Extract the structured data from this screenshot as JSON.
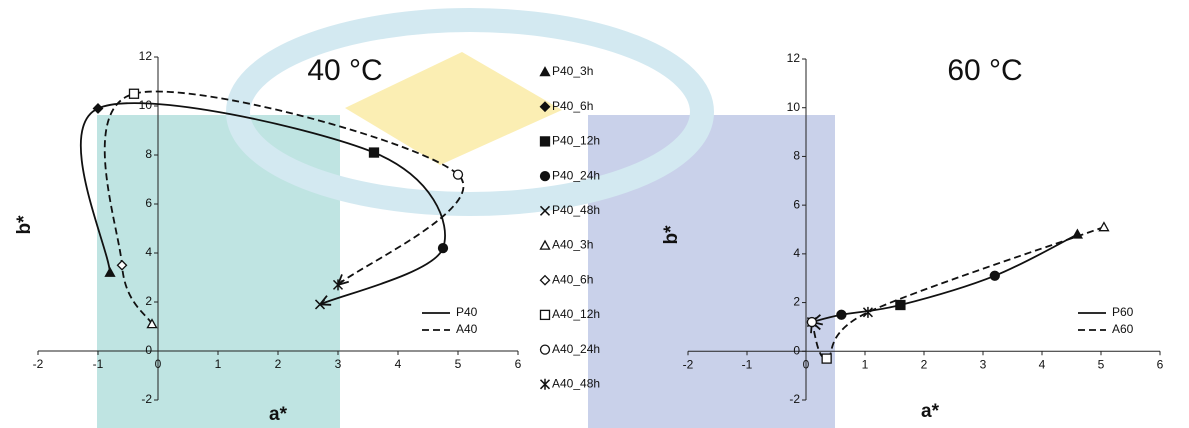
{
  "chart_data": [
    {
      "type": "scatter",
      "title": "40 °C",
      "xlabel": "a*",
      "ylabel": "b*",
      "xlim": [
        -2,
        6
      ],
      "ylim": [
        -2,
        12
      ],
      "xticks": [
        -2,
        -1,
        0,
        1,
        2,
        3,
        4,
        5,
        6
      ],
      "yticks": [
        -2,
        0,
        2,
        4,
        6,
        8,
        10,
        12
      ],
      "series": [
        {
          "name": "P40",
          "color": "#111111",
          "dash": false,
          "filled": true,
          "point_names": [
            "P40_3h",
            "P40_6h",
            "P40_12h",
            "P40_24h",
            "P40_48h"
          ],
          "markers": [
            "triangle",
            "diamond",
            "square",
            "circle",
            "x"
          ],
          "x": [
            -0.8,
            -1,
            3.6,
            4.75,
            2.7
          ],
          "values": [
            3.2,
            9.9,
            8.1,
            4.2,
            1.9
          ]
        },
        {
          "name": "A40",
          "color": "#111111",
          "dash": true,
          "filled": false,
          "point_names": [
            "A40_3h",
            "A40_6h",
            "A40_12h",
            "A40_24h",
            "A40_48h"
          ],
          "markers": [
            "triangle",
            "diamond",
            "square",
            "circle",
            "asterisk"
          ],
          "x": [
            -0.1,
            -0.6,
            -0.4,
            5,
            3
          ],
          "values": [
            1.1,
            3.5,
            10.5,
            7.2,
            2.7
          ]
        }
      ]
    },
    {
      "type": "scatter",
      "title": "60 °C",
      "xlabel": "a*",
      "ylabel": "b*",
      "xlim": [
        -2,
        6
      ],
      "ylim": [
        -2,
        12
      ],
      "xticks": [
        -2,
        -1,
        0,
        1,
        2,
        3,
        4,
        5,
        6
      ],
      "yticks": [
        -2,
        0,
        2,
        4,
        6,
        8,
        10,
        12
      ],
      "series": [
        {
          "name": "P60",
          "color": "#111111",
          "dash": false,
          "filled": true,
          "markers": [
            "triangle",
            "circle",
            "square",
            "circle",
            "x"
          ],
          "x": [
            4.6,
            3.2,
            1.6,
            0.6,
            0.1
          ],
          "values": [
            4.8,
            3.1,
            1.9,
            1.5,
            1.2
          ]
        },
        {
          "name": "A60",
          "color": "#111111",
          "dash": true,
          "filled": false,
          "markers": [
            "triangle",
            "asterisk",
            "square",
            "circle"
          ],
          "x": [
            5.05,
            1.05,
            0.35,
            0.1
          ],
          "values": [
            5.1,
            1.6,
            -0.3,
            1.2
          ]
        }
      ]
    }
  ]
}
